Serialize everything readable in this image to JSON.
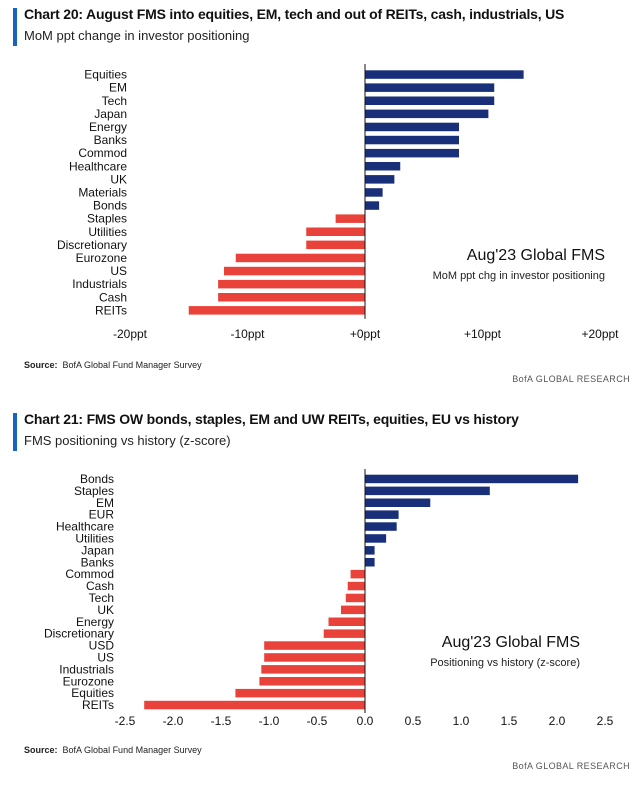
{
  "charts": [
    {
      "title": "Chart 20: August FMS into equities, EM, tech and out of REITs, cash, industrials, US",
      "subtitle": "MoM ppt change in investor positioning",
      "source_label": "Source:",
      "source_text": "BofA Global Fund Manager Survey",
      "footer": "BofA GLOBAL RESEARCH",
      "accent_color": "#1565c0"
    },
    {
      "title": "Chart 21: FMS OW bonds, staples, EM and UW REITs, equities, EU vs history",
      "subtitle": "FMS positioning vs history (z-score)",
      "source_label": "Source:",
      "source_text": "BofA Global Fund Manager Survey",
      "footer": "BofA GLOBAL RESEARCH",
      "accent_color": "#1565c0"
    }
  ],
  "colors": {
    "positive": "#1a2f7a",
    "negative": "#e8423a"
  },
  "chart_data": [
    {
      "type": "bar",
      "orientation": "horizontal",
      "title": "Chart 20: August FMS into equities, EM, tech and out of REITs, cash, industrials, US",
      "subtitle": "MoM ppt change in investor positioning",
      "xlabel": "",
      "ylabel": "",
      "xlim": [
        -20,
        20
      ],
      "ticks": [
        -20,
        -10,
        0,
        10,
        20
      ],
      "tick_labels": [
        "-20ppt",
        "-10ppt",
        "+0ppt",
        "+10ppt",
        "+20ppt"
      ],
      "categories": [
        "Equities",
        "EM",
        "Tech",
        "Japan",
        "Energy",
        "Banks",
        "Commod",
        "Healthcare",
        "UK",
        "Materials",
        "Bonds",
        "Staples",
        "Utilities",
        "Discretionary",
        "Eurozone",
        "US",
        "Industrials",
        "Cash",
        "REITs"
      ],
      "values": [
        13.5,
        11,
        11,
        10.5,
        8,
        8,
        8,
        3,
        2.5,
        1.5,
        1.2,
        -2.5,
        -5,
        -5,
        -11,
        -12,
        -12.5,
        -12.5,
        -15
      ],
      "annotation": {
        "title": "Aug'23 Global FMS",
        "subtitle": "MoM ppt chg in investor positioning"
      },
      "grid": false
    },
    {
      "type": "bar",
      "orientation": "horizontal",
      "title": "Chart 21: FMS OW bonds, staples, EM and UW REITs, equities, EU vs history",
      "subtitle": "FMS positioning vs history (z-score)",
      "xlabel": "",
      "ylabel": "",
      "xlim": [
        -2.5,
        2.5
      ],
      "ticks": [
        -2.5,
        -2.0,
        -1.5,
        -1.0,
        -0.5,
        0.0,
        0.5,
        1.0,
        1.5,
        2.0,
        2.5
      ],
      "tick_labels": [
        "-2.5",
        "-2.0",
        "-1.5",
        "-1.0",
        "-0.5",
        "0.0",
        "0.5",
        "1.0",
        "1.5",
        "2.0",
        "2.5"
      ],
      "categories": [
        "Bonds",
        "Staples",
        "EM",
        "EUR",
        "Healthcare",
        "Utilities",
        "Japan",
        "Banks",
        "Commod",
        "Cash",
        "Tech",
        "UK",
        "Energy",
        "Discretionary",
        "USD",
        "US",
        "Industrials",
        "Eurozone",
        "Equities",
        "REITs"
      ],
      "values": [
        2.22,
        1.3,
        0.68,
        0.35,
        0.33,
        0.22,
        0.1,
        0.1,
        -0.15,
        -0.18,
        -0.2,
        -0.25,
        -0.38,
        -0.43,
        -1.05,
        -1.05,
        -1.08,
        -1.1,
        -1.35,
        -2.3
      ],
      "annotation": {
        "title": "Aug'23 Global FMS",
        "subtitle": "Positioning vs history (z-score)"
      },
      "grid": false
    }
  ]
}
